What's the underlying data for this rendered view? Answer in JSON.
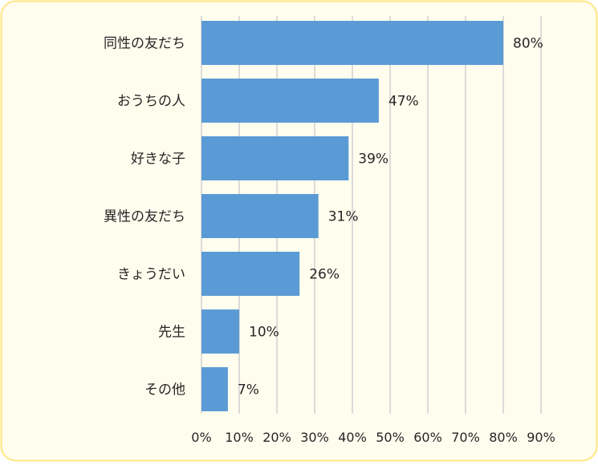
{
  "colors": {
    "background": "#FFFDEE",
    "border": "#FFE680",
    "bar": "#5B9BD5",
    "grid": "#D0D0D0",
    "text": "#262626"
  },
  "chart_data": {
    "type": "bar",
    "orientation": "horizontal",
    "categories": [
      "同性の友だち",
      "おうちの人",
      "好きな子",
      "異性の友だち",
      "きょうだい",
      "先生",
      "その他"
    ],
    "values": [
      80,
      47,
      39,
      31,
      26,
      10,
      7
    ],
    "value_labels": [
      "80%",
      "47%",
      "39%",
      "31%",
      "26%",
      "10%",
      "7%"
    ],
    "x_ticks": [
      0,
      10,
      20,
      30,
      40,
      50,
      60,
      70,
      80,
      90
    ],
    "x_tick_labels": [
      "0%",
      "10%",
      "20%",
      "30%",
      "40%",
      "50%",
      "60%",
      "70%",
      "80%",
      "90%"
    ],
    "xlim": [
      0,
      90
    ],
    "grid": "vertical",
    "legend": "none",
    "title": "",
    "xlabel": "",
    "ylabel": ""
  }
}
